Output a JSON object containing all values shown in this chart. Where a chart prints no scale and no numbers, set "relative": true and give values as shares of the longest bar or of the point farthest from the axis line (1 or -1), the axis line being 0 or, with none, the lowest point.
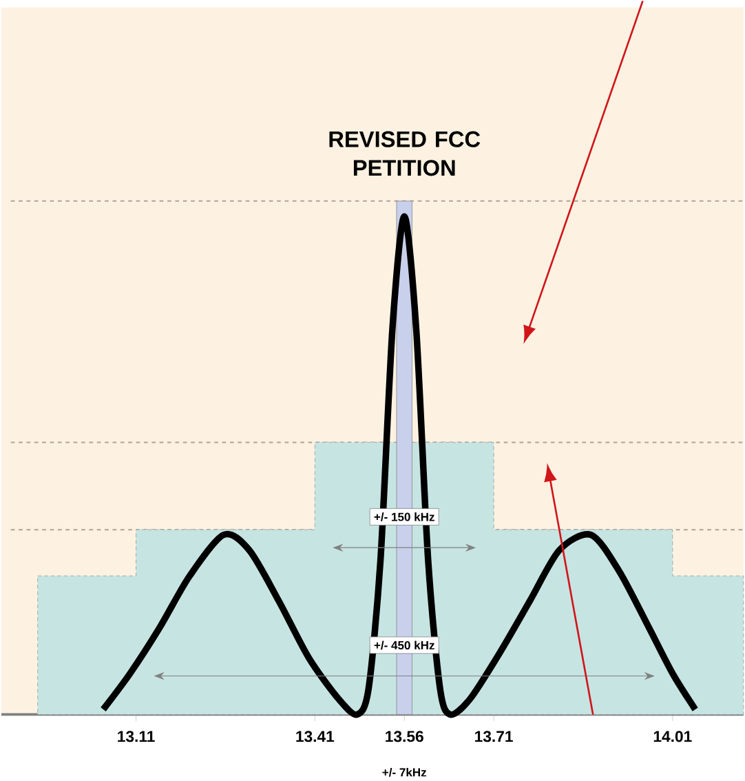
{
  "chart_data": {
    "type": "line",
    "title": "REVISED FCC PETITION",
    "relative": true,
    "xlim": [
      12.884,
      14.129
    ],
    "xticks": [
      13.11,
      13.41,
      13.56,
      13.71,
      14.01
    ],
    "series": [
      {
        "type": "area",
        "color": "#c6e4e2",
        "x": [
          12.945,
          13.11,
          13.11,
          13.41,
          13.41,
          13.71,
          13.71,
          14.01,
          14.01,
          14.129
        ],
        "values": [
          0.27,
          0.27,
          0.36,
          0.36,
          0.53,
          0.53,
          0.36,
          0.36,
          0.27,
          0.27
        ]
      },
      {
        "type": "bar",
        "color": "#c8d0ec",
        "x": [
          13.56
        ],
        "values": [
          1
        ]
      },
      {
        "color": "#000000",
        "x": [
          13.055,
          13.1,
          13.15,
          13.2,
          13.257,
          13.3,
          13.35,
          13.4,
          13.45,
          13.481,
          13.5,
          13.52,
          13.54,
          13.56,
          13.58,
          13.6,
          13.62,
          13.637,
          13.67,
          13.72,
          13.77,
          13.82,
          13.873,
          13.92,
          13.97,
          14.01,
          14.048
        ],
        "values": [
          0.01,
          0.08,
          0.17,
          0.27,
          0.35,
          0.32,
          0.22,
          0.11,
          0.03,
          0.0,
          0.05,
          0.3,
          0.75,
          0.97,
          0.75,
          0.3,
          0.05,
          0.0,
          0.03,
          0.12,
          0.22,
          0.32,
          0.35,
          0.28,
          0.17,
          0.08,
          0.01
        ]
      }
    ],
    "ref_lines": [
      {
        "axis": "y",
        "value": 1,
        "color": "#b8aaa2",
        "line_style": "dashed"
      },
      {
        "axis": "y",
        "value": 0.53,
        "color": "#b8aaa2",
        "line_style": "dashed"
      },
      {
        "axis": "y",
        "value": 0.36,
        "color": "#b8aaa2",
        "line_style": "dashed"
      }
    ],
    "annotations": [
      "+/- 150 kHz",
      "+/- 450 kHz",
      "+/- 7kHz"
    ],
    "grid": false,
    "marker": "none",
    "line_style": "solid"
  }
}
